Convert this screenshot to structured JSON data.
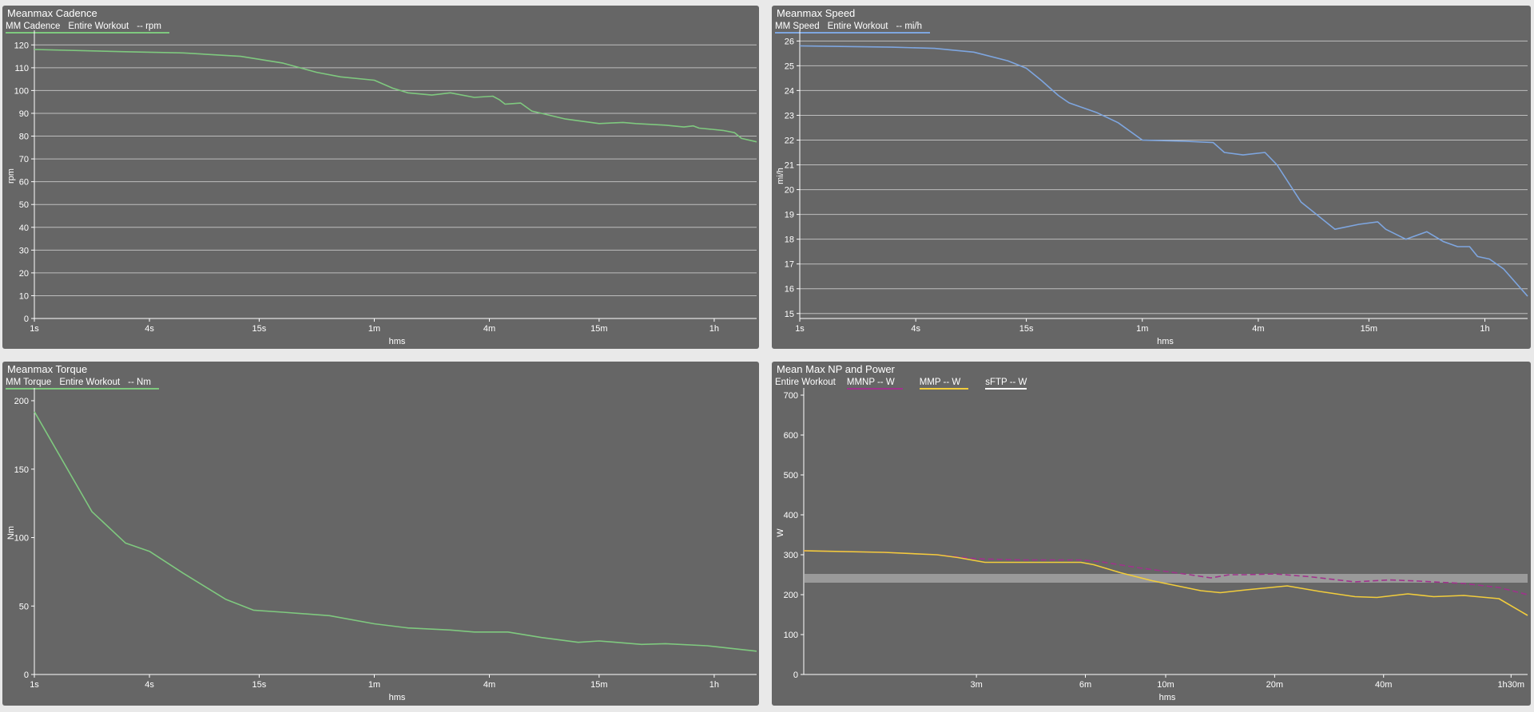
{
  "colors": {
    "background": "#e9e9e9",
    "panel": "#666666",
    "grid": "#bdbdbd",
    "axis": "#ffffff",
    "cadence": "#7fc97f",
    "speed": "#7ea6e0",
    "torque": "#7fc97f",
    "mmnp": "#a0328c",
    "mmp": "#f2cd3c",
    "sftp_band": "#9a9a9a"
  },
  "chart_data": [
    {
      "type": "line",
      "title": "Meanmax Cadence",
      "xlabel": "hms",
      "ylabel": "rpm",
      "x_scale": "log",
      "xlim": [
        1,
        6000
      ],
      "ylim": [
        0,
        125
      ],
      "x_ticks": [
        {
          "value": 1,
          "label": "1s"
        },
        {
          "value": 4,
          "label": "4s"
        },
        {
          "value": 15,
          "label": "15s"
        },
        {
          "value": 60,
          "label": "1m"
        },
        {
          "value": 240,
          "label": "4m"
        },
        {
          "value": 900,
          "label": "15m"
        },
        {
          "value": 3600,
          "label": "1h"
        }
      ],
      "y_ticks": [
        0,
        10,
        20,
        30,
        40,
        50,
        60,
        70,
        80,
        90,
        100,
        110,
        120
      ],
      "grid": true,
      "legend": {
        "series_label": "MM Cadence",
        "scope": "Entire Workout",
        "unit_label": "-- rpm"
      },
      "series": [
        {
          "name": "MM Cadence",
          "color": "#7fc97f",
          "points": [
            [
              1,
              118
            ],
            [
              3,
              117
            ],
            [
              6,
              116.5
            ],
            [
              12,
              115
            ],
            [
              20,
              112
            ],
            [
              30,
              108
            ],
            [
              40,
              106
            ],
            [
              60,
              104.5
            ],
            [
              75,
              101
            ],
            [
              90,
              99
            ],
            [
              120,
              98
            ],
            [
              150,
              99
            ],
            [
              200,
              97
            ],
            [
              250,
              97.5
            ],
            [
              270,
              96
            ],
            [
              290,
              94
            ],
            [
              350,
              94.5
            ],
            [
              400,
              91
            ],
            [
              450,
              90
            ],
            [
              600,
              87.5
            ],
            [
              900,
              85.5
            ],
            [
              1200,
              86
            ],
            [
              1400,
              85.5
            ],
            [
              2000,
              84.8
            ],
            [
              2500,
              84
            ],
            [
              2800,
              84.5
            ],
            [
              3000,
              83.5
            ],
            [
              3500,
              83
            ],
            [
              4000,
              82.5
            ],
            [
              4600,
              81.5
            ],
            [
              5000,
              79
            ],
            [
              6000,
              77.5
            ]
          ]
        }
      ]
    },
    {
      "type": "line",
      "title": "Meanmax Speed",
      "xlabel": "hms",
      "ylabel": "mi/h",
      "x_scale": "log",
      "xlim": [
        1,
        6000
      ],
      "ylim": [
        14.8,
        26.3
      ],
      "x_ticks": [
        {
          "value": 1,
          "label": "1s"
        },
        {
          "value": 4,
          "label": "4s"
        },
        {
          "value": 15,
          "label": "15s"
        },
        {
          "value": 60,
          "label": "1m"
        },
        {
          "value": 240,
          "label": "4m"
        },
        {
          "value": 900,
          "label": "15m"
        },
        {
          "value": 3600,
          "label": "1h"
        }
      ],
      "y_ticks": [
        15,
        16,
        17,
        18,
        19,
        20,
        21,
        22,
        23,
        24,
        25,
        26
      ],
      "grid": true,
      "legend": {
        "series_label": "MM Speed",
        "scope": "Entire Workout",
        "unit_label": "-- mi/h"
      },
      "series": [
        {
          "name": "MM Speed",
          "color": "#7ea6e0",
          "points": [
            [
              1,
              25.8
            ],
            [
              3,
              25.75
            ],
            [
              5,
              25.7
            ],
            [
              8,
              25.55
            ],
            [
              12,
              25.2
            ],
            [
              15,
              24.9
            ],
            [
              18,
              24.4
            ],
            [
              22,
              23.8
            ],
            [
              25,
              23.5
            ],
            [
              35,
              23.1
            ],
            [
              45,
              22.7
            ],
            [
              60,
              22
            ],
            [
              100,
              21.95
            ],
            [
              140,
              21.9
            ],
            [
              160,
              21.5
            ],
            [
              200,
              21.4
            ],
            [
              260,
              21.5
            ],
            [
              300,
              21
            ],
            [
              400,
              19.5
            ],
            [
              600,
              18.4
            ],
            [
              800,
              18.6
            ],
            [
              1000,
              18.7
            ],
            [
              1100,
              18.4
            ],
            [
              1400,
              18.0
            ],
            [
              1800,
              18.3
            ],
            [
              2200,
              17.9
            ],
            [
              2600,
              17.7
            ],
            [
              3000,
              17.7
            ],
            [
              3300,
              17.3
            ],
            [
              3800,
              17.2
            ],
            [
              4500,
              16.8
            ],
            [
              6000,
              15.7
            ]
          ]
        }
      ]
    },
    {
      "type": "line",
      "title": "Meanmax Torque",
      "xlabel": "hms",
      "ylabel": "Nm",
      "x_scale": "log",
      "xlim": [
        1,
        6000
      ],
      "ylim": [
        0,
        207
      ],
      "x_ticks": [
        {
          "value": 1,
          "label": "1s"
        },
        {
          "value": 4,
          "label": "4s"
        },
        {
          "value": 15,
          "label": "15s"
        },
        {
          "value": 60,
          "label": "1m"
        },
        {
          "value": 240,
          "label": "4m"
        },
        {
          "value": 900,
          "label": "15m"
        },
        {
          "value": 3600,
          "label": "1h"
        }
      ],
      "y_ticks": [
        0,
        50,
        100,
        150,
        200
      ],
      "grid": false,
      "legend": {
        "series_label": "MM Torque",
        "scope": "Entire Workout",
        "unit_label": "-- Nm"
      },
      "series": [
        {
          "name": "MM Torque",
          "color": "#7fc97f",
          "points": [
            [
              1,
              192
            ],
            [
              2,
              119
            ],
            [
              3,
              96
            ],
            [
              4,
              90
            ],
            [
              6,
              74
            ],
            [
              10,
              55
            ],
            [
              14,
              47
            ],
            [
              20,
              45.5
            ],
            [
              35,
              43
            ],
            [
              60,
              37
            ],
            [
              90,
              34
            ],
            [
              150,
              32.5
            ],
            [
              200,
              31
            ],
            [
              300,
              31
            ],
            [
              450,
              27
            ],
            [
              700,
              23.5
            ],
            [
              900,
              24.5
            ],
            [
              1500,
              22
            ],
            [
              2000,
              22.5
            ],
            [
              3300,
              21
            ],
            [
              6000,
              17
            ]
          ]
        }
      ]
    },
    {
      "type": "line",
      "title": "Mean Max NP and Power",
      "xlabel": "hms",
      "ylabel": "W",
      "x_scale": "log",
      "xlim": [
        60,
        6000
      ],
      "ylim": [
        0,
        710
      ],
      "x_ticks": [
        {
          "value": 180,
          "label": "3m"
        },
        {
          "value": 360,
          "label": "6m"
        },
        {
          "value": 600,
          "label": "10m"
        },
        {
          "value": 1200,
          "label": "20m"
        },
        {
          "value": 2400,
          "label": "40m"
        },
        {
          "value": 5400,
          "label": "1h30m"
        }
      ],
      "y_ticks": [
        0,
        100,
        200,
        300,
        400,
        500,
        600,
        700
      ],
      "grid": false,
      "legend": {
        "scope": "Entire Workout",
        "items": [
          {
            "label": "MMNP  -- W",
            "color": "#a0328c",
            "style": "dashed"
          },
          {
            "label": "MMP  -- W",
            "color": "#f2cd3c",
            "style": "solid"
          },
          {
            "label": "sFTP  -- W",
            "color": "#ffffff",
            "style": "band"
          }
        ]
      },
      "sftp_band": {
        "low": 230,
        "high": 252,
        "color": "#9a9a9a"
      },
      "series": [
        {
          "name": "MMNP",
          "color": "#a0328c",
          "dashed": true,
          "points": [
            [
              60,
              310
            ],
            [
              100,
              306
            ],
            [
              140,
              300
            ],
            [
              180,
              290
            ],
            [
              240,
              287
            ],
            [
              350,
              287
            ],
            [
              400,
              282
            ],
            [
              500,
              268
            ],
            [
              700,
              250
            ],
            [
              800,
              242
            ],
            [
              900,
              250
            ],
            [
              1000,
              250
            ],
            [
              1200,
              252
            ],
            [
              1500,
              245
            ],
            [
              2000,
              232
            ],
            [
              2500,
              237
            ],
            [
              3000,
              234
            ],
            [
              4000,
              228
            ],
            [
              5000,
              218
            ],
            [
              6000,
              200
            ]
          ]
        },
        {
          "name": "MMP",
          "color": "#f2cd3c",
          "dashed": false,
          "points": [
            [
              60,
              310
            ],
            [
              100,
              306
            ],
            [
              140,
              300
            ],
            [
              160,
              293
            ],
            [
              190,
              281
            ],
            [
              350,
              281
            ],
            [
              380,
              275
            ],
            [
              450,
              255
            ],
            [
              550,
              235
            ],
            [
              750,
              210
            ],
            [
              850,
              205
            ],
            [
              1000,
              212
            ],
            [
              1300,
              222
            ],
            [
              1600,
              208
            ],
            [
              2000,
              195
            ],
            [
              2300,
              193
            ],
            [
              2800,
              202
            ],
            [
              3300,
              195
            ],
            [
              4000,
              198
            ],
            [
              5000,
              190
            ],
            [
              6000,
              148
            ]
          ]
        }
      ]
    }
  ]
}
